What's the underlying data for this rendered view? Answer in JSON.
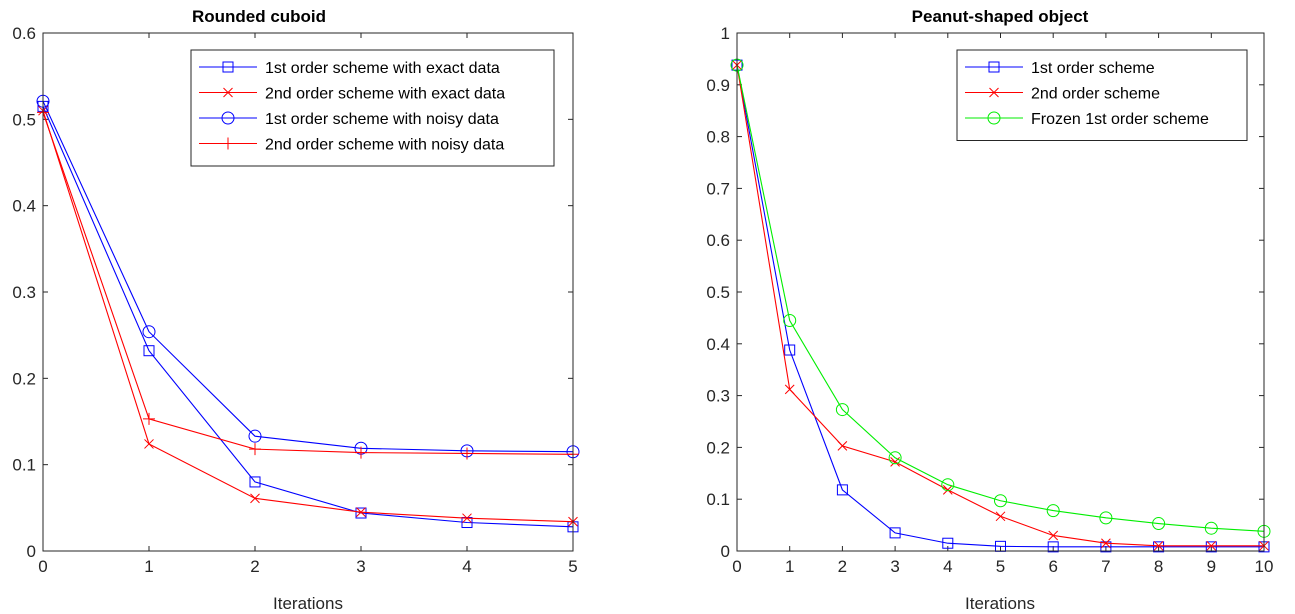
{
  "chart_data": [
    {
      "type": "line",
      "title": "Rounded cuboid",
      "xlabel": "Iterations",
      "ylabel": "",
      "xlim": [
        0,
        5
      ],
      "ylim": [
        0,
        0.6
      ],
      "xticks": [
        "0",
        "1",
        "2",
        "3",
        "4",
        "5"
      ],
      "yticks": [
        "0",
        "0.1",
        "0.2",
        "0.3",
        "0.4",
        "0.5",
        "0.6"
      ],
      "grid": false,
      "legend_position": "top-right",
      "x": [
        0,
        1,
        2,
        3,
        4,
        5
      ],
      "series": [
        {
          "name": "1st order scheme with exact data",
          "color": "#0000ff",
          "marker": "square",
          "values": [
            0.515,
            0.232,
            0.08,
            0.044,
            0.033,
            0.028
          ]
        },
        {
          "name": "2nd order scheme with exact data",
          "color": "#ff0000",
          "marker": "x",
          "values": [
            0.51,
            0.124,
            0.061,
            0.045,
            0.038,
            0.034
          ]
        },
        {
          "name": "1st order scheme with noisy data",
          "color": "#0000ff",
          "marker": "circle",
          "values": [
            0.521,
            0.254,
            0.133,
            0.119,
            0.116,
            0.115
          ]
        },
        {
          "name": "2nd order scheme with noisy data",
          "color": "#ff0000",
          "marker": "plus",
          "values": [
            0.508,
            0.153,
            0.118,
            0.114,
            0.113,
            0.112
          ]
        }
      ]
    },
    {
      "type": "line",
      "title": "Peanut-shaped object",
      "xlabel": "Iterations",
      "ylabel": "",
      "xlim": [
        0,
        10
      ],
      "ylim": [
        0,
        1
      ],
      "xticks": [
        "0",
        "1",
        "2",
        "3",
        "4",
        "5",
        "6",
        "7",
        "8",
        "9",
        "10"
      ],
      "yticks": [
        "0",
        "0.1",
        "0.2",
        "0.3",
        "0.4",
        "0.5",
        "0.6",
        "0.7",
        "0.8",
        "0.9",
        "1"
      ],
      "grid": false,
      "legend_position": "top-right",
      "x": [
        0,
        1,
        2,
        3,
        4,
        5,
        6,
        7,
        8,
        9,
        10
      ],
      "series": [
        {
          "name": "1st order scheme",
          "color": "#0000ff",
          "marker": "square",
          "values": [
            0.938,
            0.388,
            0.118,
            0.035,
            0.015,
            0.009,
            0.008,
            0.008,
            0.008,
            0.008,
            0.008
          ]
        },
        {
          "name": "2nd order scheme",
          "color": "#ff0000",
          "marker": "x",
          "values": [
            0.938,
            0.312,
            0.203,
            0.172,
            0.118,
            0.067,
            0.03,
            0.015,
            0.01,
            0.01,
            0.01
          ]
        },
        {
          "name": "Frozen 1st order scheme",
          "color": "#00ee00",
          "marker": "circle",
          "values": [
            0.938,
            0.445,
            0.273,
            0.18,
            0.128,
            0.097,
            0.078,
            0.064,
            0.053,
            0.044,
            0.038
          ]
        }
      ]
    }
  ]
}
